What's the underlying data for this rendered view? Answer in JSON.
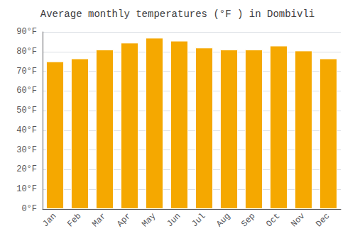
{
  "chart_data": {
    "type": "bar",
    "title": "Average monthly temperatures (°F ) in Dombivli",
    "categories": [
      "Jan",
      "Feb",
      "Mar",
      "Apr",
      "May",
      "Jun",
      "Jul",
      "Aug",
      "Sep",
      "Oct",
      "Nov",
      "Dec"
    ],
    "values": [
      75,
      76.5,
      81,
      84.5,
      87,
      85.5,
      82,
      81,
      81,
      83,
      80.5,
      76.5
    ],
    "color": "#F5A800",
    "ylim": [
      0,
      90
    ],
    "yticks": [
      {
        "value": 0,
        "label": "0°F"
      },
      {
        "value": 10,
        "label": "10°F"
      },
      {
        "value": 20,
        "label": "20°F"
      },
      {
        "value": 30,
        "label": "30°F"
      },
      {
        "value": 40,
        "label": "40°F"
      },
      {
        "value": 50,
        "label": "50°F"
      },
      {
        "value": 60,
        "label": "60°F"
      },
      {
        "value": 70,
        "label": "70°F"
      },
      {
        "value": 80,
        "label": "80°F"
      },
      {
        "value": 90,
        "label": "90°F"
      }
    ],
    "grid": true
  }
}
